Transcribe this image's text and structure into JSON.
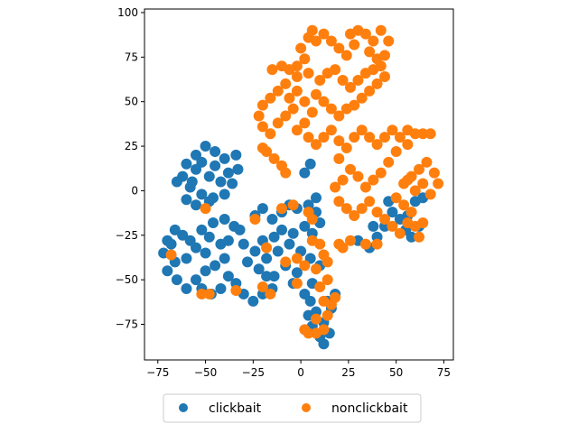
{
  "chart_data": {
    "type": "scatter",
    "xlim": [
      -82,
      80
    ],
    "ylim": [
      -95,
      102
    ],
    "xticks": [
      -75,
      -50,
      -25,
      0,
      25,
      50,
      75
    ],
    "yticks": [
      -75,
      -50,
      -25,
      0,
      25,
      50,
      75,
      100
    ],
    "grid": false,
    "legend_position": "bottom-center",
    "series": [
      {
        "name": "clickbait",
        "color": "#1f77b4",
        "points": [
          [
            -55,
            20
          ],
          [
            -50,
            25
          ],
          [
            -45,
            22
          ],
          [
            -40,
            18
          ],
          [
            -38,
            10
          ],
          [
            -42,
            5
          ],
          [
            -48,
            8
          ],
          [
            -55,
            12
          ],
          [
            -60,
            15
          ],
          [
            -62,
            8
          ],
          [
            -58,
            2
          ],
          [
            -52,
            -2
          ],
          [
            -46,
            -4
          ],
          [
            -40,
            -2
          ],
          [
            -36,
            4
          ],
          [
            -33,
            12
          ],
          [
            -34,
            20
          ],
          [
            -45,
            14
          ],
          [
            -52,
            16
          ],
          [
            -57,
            5
          ],
          [
            -65,
            5
          ],
          [
            -60,
            -5
          ],
          [
            -55,
            -8
          ],
          [
            -48,
            -6
          ],
          [
            -70,
            -28
          ],
          [
            -66,
            -22
          ],
          [
            -62,
            -25
          ],
          [
            -58,
            -28
          ],
          [
            -55,
            -32
          ],
          [
            -60,
            -38
          ],
          [
            -66,
            -40
          ],
          [
            -70,
            -45
          ],
          [
            -72,
            -35
          ],
          [
            -68,
            -30
          ],
          [
            -65,
            -50
          ],
          [
            -60,
            -55
          ],
          [
            -55,
            -50
          ],
          [
            -50,
            -45
          ],
          [
            -45,
            -42
          ],
          [
            -40,
            -38
          ],
          [
            -42,
            -30
          ],
          [
            -48,
            -26
          ],
          [
            -52,
            -22
          ],
          [
            -46,
            -18
          ],
          [
            -40,
            -16
          ],
          [
            -35,
            -20
          ],
          [
            -38,
            -28
          ],
          [
            -50,
            -35
          ],
          [
            -52,
            -55
          ],
          [
            -47,
            -58
          ],
          [
            -42,
            -55
          ],
          [
            -38,
            -48
          ],
          [
            -34,
            -52
          ],
          [
            -30,
            -58
          ],
          [
            -25,
            -62
          ],
          [
            -20,
            -58
          ],
          [
            -15,
            -55
          ],
          [
            -18,
            -48
          ],
          [
            -24,
            -14
          ],
          [
            -20,
            -10
          ],
          [
            -15,
            -16
          ],
          [
            -10,
            -12
          ],
          [
            -6,
            -8
          ],
          [
            -2,
            -10
          ],
          [
            4,
            -8
          ],
          [
            8,
            -12
          ],
          [
            10,
            -18
          ],
          [
            6,
            -24
          ],
          [
            2,
            -20
          ],
          [
            -4,
            -24
          ],
          [
            -10,
            -22
          ],
          [
            -14,
            -26
          ],
          [
            -20,
            -28
          ],
          [
            -24,
            -34
          ],
          [
            -18,
            -38
          ],
          [
            -12,
            -34
          ],
          [
            -6,
            -30
          ],
          [
            0,
            -34
          ],
          [
            5,
            -38
          ],
          [
            10,
            -42
          ],
          [
            -2,
            -46
          ],
          [
            -8,
            -42
          ],
          [
            -14,
            -48
          ],
          [
            -4,
            -52
          ],
          [
            2,
            -58
          ],
          [
            6,
            -52
          ],
          [
            -22,
            -44
          ],
          [
            -28,
            -40
          ],
          [
            -30,
            -30
          ],
          [
            -32,
            -22
          ],
          [
            5,
            -62
          ],
          [
            8,
            -68
          ],
          [
            12,
            -74
          ],
          [
            15,
            -80
          ],
          [
            10,
            -82
          ],
          [
            6,
            -76
          ],
          [
            4,
            -70
          ],
          [
            14,
            -62
          ],
          [
            18,
            -58
          ],
          [
            16,
            -66
          ],
          [
            12,
            -86
          ],
          [
            30,
            -28
          ],
          [
            36,
            -32
          ],
          [
            40,
            -26
          ],
          [
            44,
            -20
          ],
          [
            48,
            -12
          ],
          [
            52,
            -16
          ],
          [
            55,
            -22
          ],
          [
            58,
            -26
          ],
          [
            62,
            -20
          ],
          [
            56,
            -14
          ],
          [
            60,
            -6
          ],
          [
            64,
            -4
          ],
          [
            46,
            -6
          ],
          [
            38,
            -20
          ],
          [
            5,
            15
          ],
          [
            2,
            10
          ],
          [
            8,
            -4
          ]
        ]
      },
      {
        "name": "nonclickbait",
        "color": "#ff7f0e",
        "points": [
          [
            0,
            80
          ],
          [
            4,
            86
          ],
          [
            8,
            84
          ],
          [
            12,
            88
          ],
          [
            16,
            84
          ],
          [
            20,
            80
          ],
          [
            24,
            76
          ],
          [
            28,
            82
          ],
          [
            30,
            90
          ],
          [
            34,
            88
          ],
          [
            38,
            84
          ],
          [
            36,
            78
          ],
          [
            40,
            74
          ],
          [
            42,
            70
          ],
          [
            44,
            64
          ],
          [
            40,
            60
          ],
          [
            36,
            56
          ],
          [
            32,
            52
          ],
          [
            28,
            48
          ],
          [
            24,
            46
          ],
          [
            20,
            42
          ],
          [
            16,
            46
          ],
          [
            12,
            50
          ],
          [
            8,
            54
          ],
          [
            10,
            62
          ],
          [
            14,
            66
          ],
          [
            18,
            68
          ],
          [
            22,
            62
          ],
          [
            26,
            58
          ],
          [
            30,
            62
          ],
          [
            34,
            66
          ],
          [
            38,
            68
          ],
          [
            44,
            76
          ],
          [
            46,
            84
          ],
          [
            42,
            90
          ],
          [
            26,
            88
          ],
          [
            6,
            90
          ],
          [
            2,
            74
          ],
          [
            -2,
            70
          ],
          [
            4,
            66
          ],
          [
            -15,
            68
          ],
          [
            -10,
            70
          ],
          [
            -6,
            68
          ],
          [
            -2,
            64
          ],
          [
            -8,
            60
          ],
          [
            -12,
            56
          ],
          [
            -16,
            52
          ],
          [
            -20,
            48
          ],
          [
            -22,
            42
          ],
          [
            -20,
            36
          ],
          [
            -16,
            32
          ],
          [
            -12,
            38
          ],
          [
            -8,
            42
          ],
          [
            -4,
            46
          ],
          [
            -6,
            52
          ],
          [
            -2,
            56
          ],
          [
            2,
            50
          ],
          [
            6,
            44
          ],
          [
            2,
            38
          ],
          [
            -2,
            34
          ],
          [
            4,
            30
          ],
          [
            8,
            26
          ],
          [
            12,
            30
          ],
          [
            16,
            34
          ],
          [
            20,
            28
          ],
          [
            -18,
            22
          ],
          [
            -14,
            18
          ],
          [
            -10,
            14
          ],
          [
            -20,
            24
          ],
          [
            -8,
            10
          ],
          [
            20,
            18
          ],
          [
            24,
            24
          ],
          [
            28,
            30
          ],
          [
            32,
            34
          ],
          [
            36,
            30
          ],
          [
            40,
            26
          ],
          [
            44,
            30
          ],
          [
            48,
            34
          ],
          [
            52,
            30
          ],
          [
            56,
            34
          ],
          [
            60,
            32
          ],
          [
            64,
            32
          ],
          [
            68,
            32
          ],
          [
            56,
            26
          ],
          [
            50,
            22
          ],
          [
            46,
            16
          ],
          [
            42,
            10
          ],
          [
            38,
            6
          ],
          [
            34,
            2
          ],
          [
            30,
            8
          ],
          [
            26,
            12
          ],
          [
            22,
            6
          ],
          [
            18,
            2
          ],
          [
            20,
            -6
          ],
          [
            24,
            -10
          ],
          [
            28,
            -14
          ],
          [
            32,
            -10
          ],
          [
            36,
            -6
          ],
          [
            40,
            -12
          ],
          [
            44,
            -16
          ],
          [
            48,
            -20
          ],
          [
            52,
            -24
          ],
          [
            56,
            -18
          ],
          [
            60,
            -20
          ],
          [
            62,
            -26
          ],
          [
            64,
            -18
          ],
          [
            58,
            -12
          ],
          [
            54,
            -8
          ],
          [
            50,
            -4
          ],
          [
            54,
            4
          ],
          [
            58,
            8
          ],
          [
            62,
            12
          ],
          [
            66,
            16
          ],
          [
            70,
            10
          ],
          [
            72,
            4
          ],
          [
            68,
            -2
          ],
          [
            64,
            4
          ],
          [
            60,
            0
          ],
          [
            56,
            6
          ],
          [
            -68,
            -36
          ],
          [
            -50,
            -10
          ],
          [
            -52,
            -58
          ],
          [
            -48,
            -58
          ],
          [
            -34,
            -56
          ],
          [
            -24,
            -16
          ],
          [
            -20,
            -54
          ],
          [
            -18,
            -32
          ],
          [
            -16,
            -58
          ],
          [
            -10,
            -10
          ],
          [
            -8,
            -40
          ],
          [
            -4,
            -8
          ],
          [
            -2,
            -38
          ],
          [
            -2,
            -52
          ],
          [
            2,
            -42
          ],
          [
            4,
            -12
          ],
          [
            6,
            -16
          ],
          [
            6,
            -28
          ],
          [
            8,
            -44
          ],
          [
            10,
            -30
          ],
          [
            12,
            -36
          ],
          [
            14,
            -40
          ],
          [
            10,
            -54
          ],
          [
            14,
            -50
          ],
          [
            12,
            -62
          ],
          [
            16,
            -64
          ],
          [
            18,
            -60
          ],
          [
            8,
            -72
          ],
          [
            14,
            -70
          ],
          [
            4,
            -80
          ],
          [
            8,
            -80
          ],
          [
            12,
            -78
          ],
          [
            2,
            -78
          ],
          [
            20,
            -30
          ],
          [
            22,
            -32
          ],
          [
            26,
            -28
          ],
          [
            34,
            -30
          ],
          [
            40,
            -30
          ]
        ]
      }
    ]
  }
}
